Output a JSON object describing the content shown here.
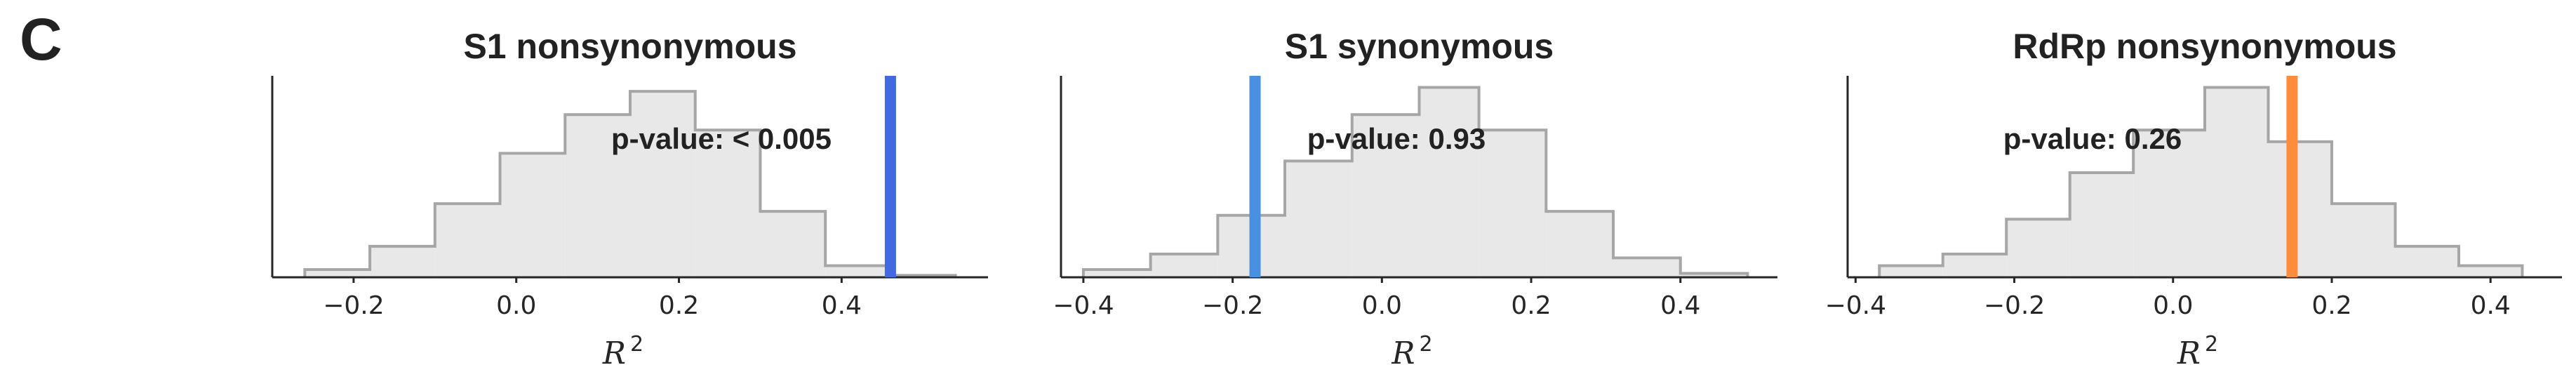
{
  "panel_label": "C",
  "colors": {
    "hist_fill": "#e8e8e8",
    "hist_edge": "#a6a6a6",
    "axis": "#262626",
    "s1_nonsyn_line": "#4169e1",
    "s1_syn_line": "#4a90e2",
    "rdrp_line": "#ff8c3a"
  },
  "chart_data": [
    {
      "type": "histogram",
      "title": "S1 nonsynonymous",
      "xlabel": "R",
      "xlabel_sup": "2",
      "ylabel": "",
      "xlim": [
        -0.3,
        0.58
      ],
      "xticks": [
        -0.2,
        0.0,
        0.2,
        0.4
      ],
      "xtick_labels": [
        "−0.2",
        "0.0",
        "0.2",
        "0.4"
      ],
      "bin_edges": [
        -0.26,
        -0.18,
        -0.1,
        -0.02,
        0.06,
        0.14,
        0.22,
        0.3,
        0.38,
        0.46,
        0.54
      ],
      "counts": [
        2,
        8,
        19,
        32,
        42,
        48,
        38,
        17,
        3,
        0.5
      ],
      "ymax": 52,
      "observed": 0.46,
      "line_color_key": "s1_nonsyn_line",
      "annotation": "p-value: < 0.005"
    },
    {
      "type": "histogram",
      "title": "S1 synonymous",
      "xlabel": "R",
      "xlabel_sup": "2",
      "ylabel": "",
      "xlim": [
        -0.43,
        0.53
      ],
      "xticks": [
        -0.4,
        -0.2,
        0.0,
        0.2,
        0.4
      ],
      "xtick_labels": [
        "−0.4",
        "−0.2",
        "0.0",
        "0.2",
        "0.4"
      ],
      "bin_edges": [
        -0.4,
        -0.31,
        -0.22,
        -0.13,
        -0.04,
        0.05,
        0.13,
        0.22,
        0.31,
        0.4,
        0.49
      ],
      "counts": [
        2,
        6,
        16,
        30,
        42,
        49,
        38,
        17,
        5,
        1
      ],
      "ymax": 52,
      "observed": -0.17,
      "line_color_key": "s1_syn_line",
      "annotation": "p-value: 0.93"
    },
    {
      "type": "histogram",
      "title": "RdRp nonsynonymous",
      "xlabel": "R",
      "xlabel_sup": "2",
      "ylabel": "",
      "xlim": [
        -0.41,
        0.49
      ],
      "xticks": [
        -0.4,
        -0.2,
        0.0,
        0.2,
        0.4
      ],
      "xtick_labels": [
        "−0.4",
        "−0.2",
        "0.0",
        "0.2",
        "0.4"
      ],
      "bin_edges": [
        -0.37,
        -0.29,
        -0.21,
        -0.13,
        -0.05,
        0.04,
        0.12,
        0.2,
        0.28,
        0.36,
        0.44
      ],
      "counts": [
        3,
        6,
        15,
        27,
        38,
        49,
        35,
        19,
        8,
        3
      ],
      "ymax": 52,
      "observed": 0.15,
      "line_color_key": "rdrp_line",
      "annotation": "p-value: 0.26"
    }
  ]
}
